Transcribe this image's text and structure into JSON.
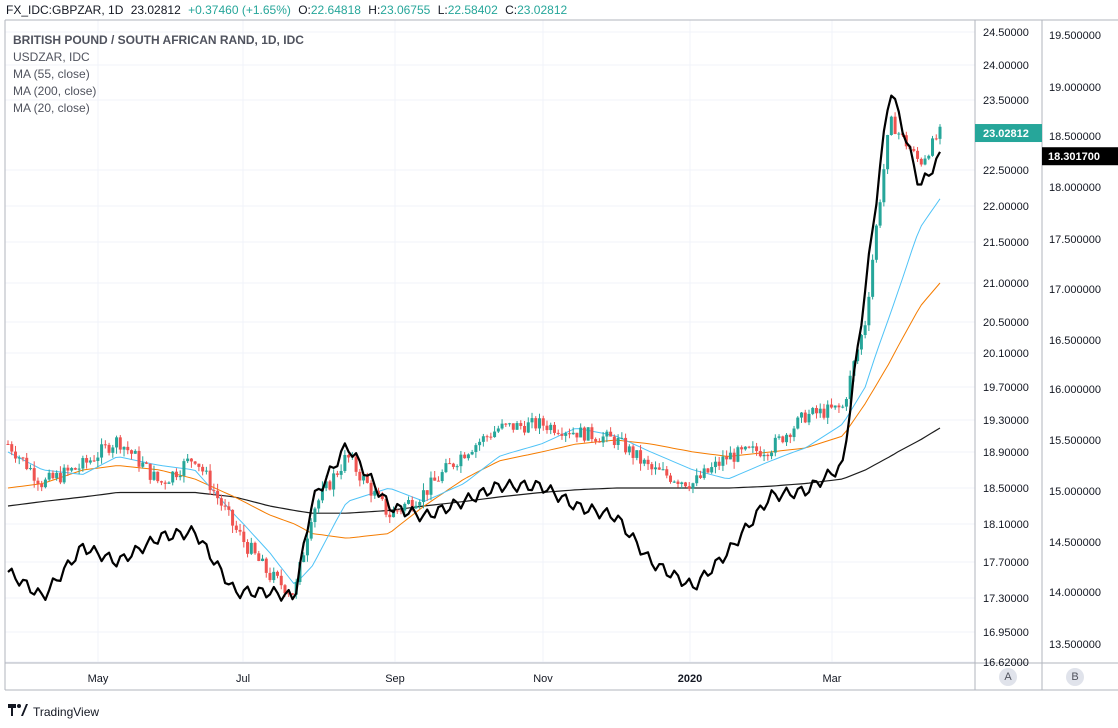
{
  "header": {
    "symbol": "FX_IDC:GBPZAR, 1D",
    "last": "23.02812",
    "change": "+0.37460 (+1.65%)",
    "open_label": "O:",
    "open": "22.64818",
    "high_label": "H:",
    "high": "23.06755",
    "low_label": "L:",
    "low": "22.58402",
    "close_label": "C:",
    "close": "23.02812"
  },
  "legend": {
    "title": "BRITISH POUND / SOUTH AFRICAN RAND, 1D, IDC",
    "items": [
      "USDZAR, IDC",
      "MA (55, close)",
      "MA (200, close)",
      "MA (20, close)"
    ]
  },
  "footer": {
    "brand": "TradingView"
  },
  "scale_buttons": {
    "a": "A",
    "b": "B"
  },
  "colors": {
    "up": "#26a69a",
    "down": "#ef5350",
    "usdzar": "#000000",
    "ma55": "#f57c00",
    "ma200": "#1e1e1e",
    "ma20": "#4fc3f7",
    "grid": "#f0f3fa"
  },
  "chart_data": {
    "type": "line",
    "title": "BRITISH POUND / SOUTH AFRICAN RAND, 1D, IDC",
    "x_ticks": [
      "May",
      "Jul",
      "Sep",
      "Nov",
      "2020",
      "Mar"
    ],
    "x_ticks_bold": [
      "2020"
    ],
    "y_left": {
      "ticks": [
        "24.50000",
        "24.00000",
        "23.50000",
        "22.50000",
        "22.00000",
        "21.50000",
        "21.00000",
        "20.50000",
        "20.10000",
        "19.70000",
        "19.30000",
        "18.90000",
        "18.50000",
        "18.10000",
        "17.70000",
        "17.30000",
        "16.95000",
        "16.62000"
      ],
      "label_last": "23.02812"
    },
    "y_right": {
      "ticks": [
        "19.500000",
        "19.000000",
        "18.500000",
        "18.000000",
        "17.500000",
        "17.000000",
        "16.500000",
        "16.000000",
        "15.500000",
        "15.000000",
        "14.500000",
        "14.000000",
        "13.500000"
      ],
      "label_last": "18.301700"
    },
    "grid": true,
    "series": [
      {
        "name": "BRITISH POUND / SOUTH AFRICAN RAND",
        "type": "candlestick",
        "x": [
          "2019-04-01",
          "2019-04-15",
          "2019-05-01",
          "2019-05-15",
          "2019-06-01",
          "2019-06-15",
          "2019-07-01",
          "2019-07-15",
          "2019-07-25",
          "2019-08-01",
          "2019-08-15",
          "2019-09-01",
          "2019-09-15",
          "2019-10-01",
          "2019-10-15",
          "2019-11-01",
          "2019-11-15",
          "2019-12-01",
          "2019-12-15",
          "2020-01-01",
          "2020-01-15",
          "2020-02-01",
          "2020-02-15",
          "2020-03-01",
          "2020-03-10",
          "2020-03-20",
          "2020-04-01",
          "2020-04-09"
        ],
        "close": [
          19.0,
          18.55,
          18.75,
          19.05,
          18.55,
          18.85,
          18.05,
          17.55,
          17.35,
          18.25,
          18.85,
          18.2,
          18.45,
          18.9,
          19.2,
          19.25,
          19.15,
          19.05,
          18.7,
          18.55,
          18.85,
          18.95,
          19.35,
          19.45,
          20.5,
          23.2,
          22.6,
          23.03
        ]
      },
      {
        "name": "USDZAR",
        "type": "line",
        "x": [
          "2019-04-01",
          "2019-04-15",
          "2019-05-01",
          "2019-05-15",
          "2019-06-01",
          "2019-06-15",
          "2019-07-01",
          "2019-07-15",
          "2019-07-25",
          "2019-08-01",
          "2019-08-15",
          "2019-09-01",
          "2019-09-15",
          "2019-10-01",
          "2019-10-15",
          "2019-11-01",
          "2019-11-15",
          "2019-12-01",
          "2019-12-15",
          "2020-01-01",
          "2020-01-15",
          "2020-02-01",
          "2020-02-15",
          "2020-03-01",
          "2020-03-10",
          "2020-03-20",
          "2020-04-01",
          "2020-04-09"
        ],
        "values": [
          14.2,
          13.95,
          14.45,
          14.3,
          14.55,
          14.6,
          14.0,
          14.0,
          13.95,
          14.9,
          15.45,
          14.85,
          14.75,
          14.9,
          15.05,
          15.05,
          14.85,
          14.75,
          14.3,
          14.05,
          14.4,
          14.95,
          15.0,
          15.25,
          17.0,
          19.0,
          18.0,
          18.3
        ]
      },
      {
        "name": "MA (55, close)",
        "type": "line",
        "values_desc": "smooth",
        "values": [
          18.5,
          18.55,
          18.7,
          18.75,
          18.7,
          18.6,
          18.4,
          18.2,
          18.1,
          18.0,
          17.95,
          18.0,
          18.3,
          18.6,
          18.8,
          18.9,
          19.0,
          19.05,
          19.0,
          18.9,
          18.85,
          18.9,
          18.95,
          19.1,
          19.5,
          20.0,
          20.7,
          21.0
        ]
      },
      {
        "name": "MA (200, close)",
        "type": "line",
        "values": [
          18.3,
          18.35,
          18.4,
          18.45,
          18.45,
          18.45,
          18.4,
          18.3,
          18.25,
          18.22,
          18.22,
          18.25,
          18.3,
          18.35,
          18.4,
          18.45,
          18.48,
          18.5,
          18.5,
          18.5,
          18.5,
          18.52,
          18.55,
          18.6,
          18.7,
          18.85,
          19.05,
          19.2
        ]
      },
      {
        "name": "MA (20, close)",
        "type": "line",
        "values": [
          18.9,
          18.7,
          18.65,
          18.85,
          18.75,
          18.7,
          18.2,
          17.8,
          17.45,
          17.65,
          18.35,
          18.5,
          18.35,
          18.55,
          18.85,
          19.0,
          19.2,
          19.1,
          18.9,
          18.7,
          18.6,
          18.8,
          18.95,
          19.25,
          19.7,
          20.6,
          21.7,
          22.1
        ]
      }
    ]
  }
}
